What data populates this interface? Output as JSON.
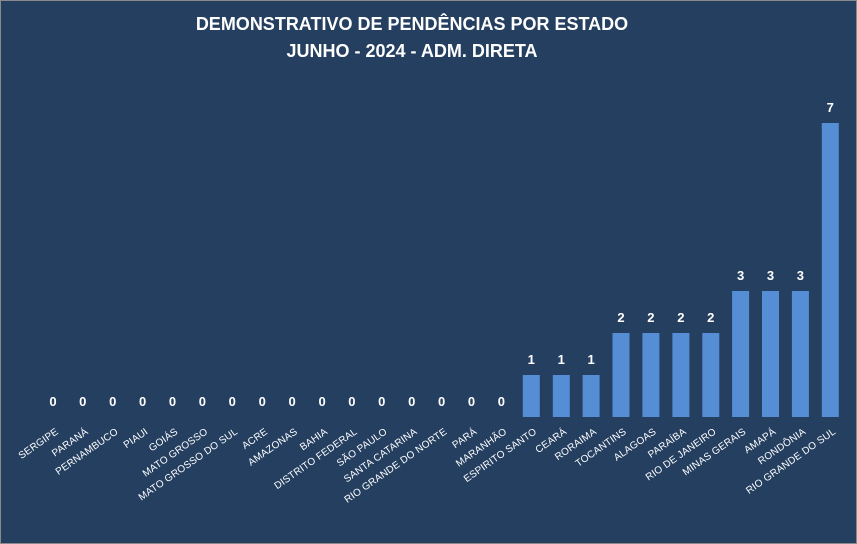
{
  "chart_data": {
    "type": "bar",
    "title": "DEMONSTRATIVO DE PENDÊNCIAS POR ESTADO",
    "subtitle": "JUNHO - 2024 - ADM. DIRETA",
    "categories": [
      "SERGIPE",
      "PARANÁ",
      "PERNAMBUCO",
      "PIAUI",
      "GOIÁS",
      "MATO GROSSO",
      "MATO GROSSO DO SUL",
      "ACRE",
      "AMAZONAS",
      "BAHIA",
      "DISTRITO FEDERAL",
      "SÃO PAULO",
      "SANTA CATARINA",
      "RIO GRANDE DO NORTE",
      "PARÁ",
      "MARANHÃO",
      "ESPIRITO SANTO",
      "CEARÁ",
      "RORAIMA",
      "TOCANTINS",
      "ALAGOAS",
      "PARAÍBA",
      "RIO DE JANEIRO",
      "MINAS GERAIS",
      "AMAPÁ",
      "RONDÔNIA",
      "RIO GRANDE DO SUL"
    ],
    "values": [
      0,
      0,
      0,
      0,
      0,
      0,
      0,
      0,
      0,
      0,
      0,
      0,
      0,
      0,
      0,
      0,
      1,
      1,
      1,
      2,
      2,
      2,
      2,
      3,
      3,
      3,
      7
    ],
    "ylim": [
      0,
      7
    ],
    "grid": false,
    "legend": "none",
    "colors": {
      "background": "#243f60",
      "bar": "#558ed5",
      "text": "#ffffff"
    }
  }
}
